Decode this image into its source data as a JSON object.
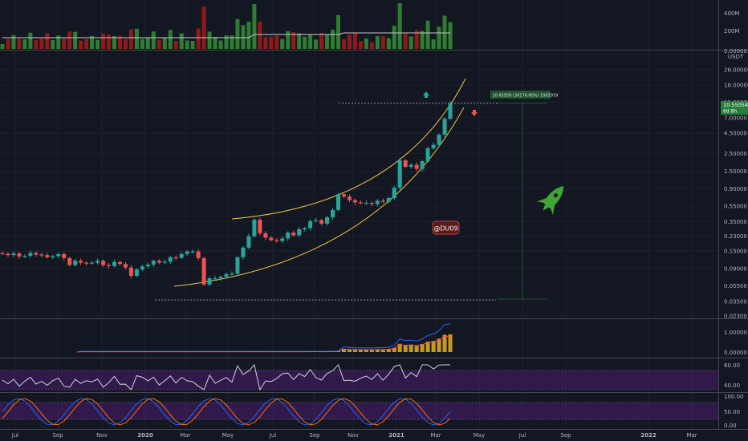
{
  "watermark": "@DU09",
  "colors": {
    "background": "#131722",
    "up": "#26a69a",
    "down": "#ef5350",
    "volume_up": "#2e7d32",
    "volume_down": "#8e1a1a",
    "channel": "#f0c240",
    "rocket": "#3fa535",
    "measure": "#1e5631",
    "rsi_band": "#4a1d6e",
    "badge_bg": "#5b1a1a",
    "badge_border": "#b04545"
  },
  "icons": [
    "rocket-icon",
    "arrow-up-icon",
    "arrow-down-icon"
  ],
  "price_axis": {
    "unit": "USDT",
    "ticks": [
      "28.00000",
      "18.00000",
      "11.00000",
      "7.00000",
      "4.50000",
      "2.50000",
      "1.50000",
      "0.90000",
      "0.55000",
      "0.35000",
      "0.23000",
      "0.15000",
      "0.09000",
      "0.05500",
      "0.03500",
      "0.02300"
    ],
    "current_price": "10.55054",
    "time_left": "6d 8h"
  },
  "volume_axis": {
    "ticks": [
      "400M",
      "200M"
    ],
    "tail": "0.00000"
  },
  "indicator_axis": {
    "ticks": [
      "1.00000",
      "0.00000"
    ]
  },
  "rsi_axis": {
    "ticks": [
      "80.00",
      "40.00"
    ]
  },
  "stoch_axis": {
    "ticks": [
      "100.00",
      "50.00",
      "0.00"
    ]
  },
  "measure_label": "10.65959 (30176.80%) 1065959",
  "time_axis": [
    "Jul",
    "Sep",
    "Nov",
    "2020",
    "Mar",
    "May",
    "Jul",
    "Sep",
    "Nov",
    "2021",
    "Mar",
    "May",
    "Jul",
    "Sep",
    "2022",
    "Mar"
  ],
  "chart_data": {
    "type": "candlestick",
    "scale": "log",
    "ylim": [
      0.023,
      28
    ],
    "series": [
      {
        "values": [
          0.138,
          0.133,
          0.14,
          0.128,
          0.13,
          0.142,
          0.135,
          0.133,
          0.125,
          0.129,
          0.137,
          0.122,
          0.1,
          0.113,
          0.107,
          0.105,
          0.107,
          0.113,
          0.1,
          0.097,
          0.109,
          0.103,
          0.093,
          0.073,
          0.088,
          0.096,
          0.101,
          0.113,
          0.107,
          0.11,
          0.125,
          0.123,
          0.137,
          0.148,
          0.148,
          0.122,
          0.057,
          0.068,
          0.068,
          0.071,
          0.077,
          0.078,
          0.125,
          0.165,
          0.23,
          0.37,
          0.25,
          0.22,
          0.205,
          0.2,
          0.215,
          0.255,
          0.235,
          0.28,
          0.29,
          0.355,
          0.365,
          0.33,
          0.395,
          0.49,
          0.77,
          0.72,
          0.65,
          0.61,
          0.6,
          0.6,
          0.58,
          0.64,
          0.62,
          0.69,
          0.93,
          2.05,
          1.7,
          1.8,
          1.6,
          2.0,
          2.9,
          3.2,
          4.3,
          6.8,
          10.55
        ]
      }
    ]
  }
}
